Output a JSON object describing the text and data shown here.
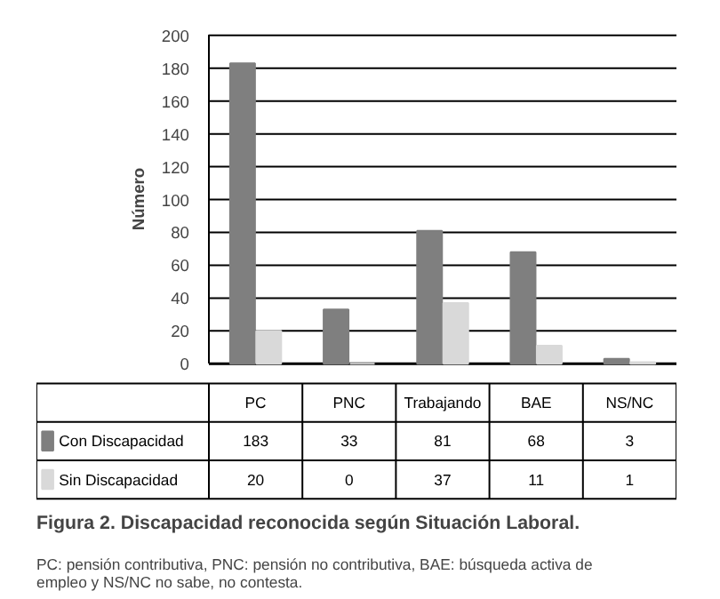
{
  "chart_data": {
    "type": "bar",
    "title": "Figura 2. Discapacidad reconocida según Situación Laboral.",
    "ylabel": "Número",
    "categories": [
      "PC",
      "PNC",
      "Trabajando",
      "BAE",
      "NS/NC"
    ],
    "series": [
      {
        "name": "Con Discapacidad",
        "color": "#7f7f7f",
        "values": [
          183,
          33,
          81,
          68,
          3
        ]
      },
      {
        "name": "Sin Discapacidad",
        "color": "#d9d9d9",
        "values": [
          20,
          0,
          37,
          11,
          1
        ]
      }
    ],
    "ylim": [
      0,
      200
    ],
    "yticks": [
      0,
      20,
      40,
      60,
      80,
      100,
      120,
      140,
      160,
      180,
      200
    ],
    "grid": "y",
    "legend": "bottom",
    "data_labels": true,
    "tick_labels": "y",
    "annotations": [
      "PC: pensión contributiva, PNC: pensión no contributiva, BAE: búsqueda activa de empleo y NS/NC no sabe, no contesta."
    ]
  }
}
